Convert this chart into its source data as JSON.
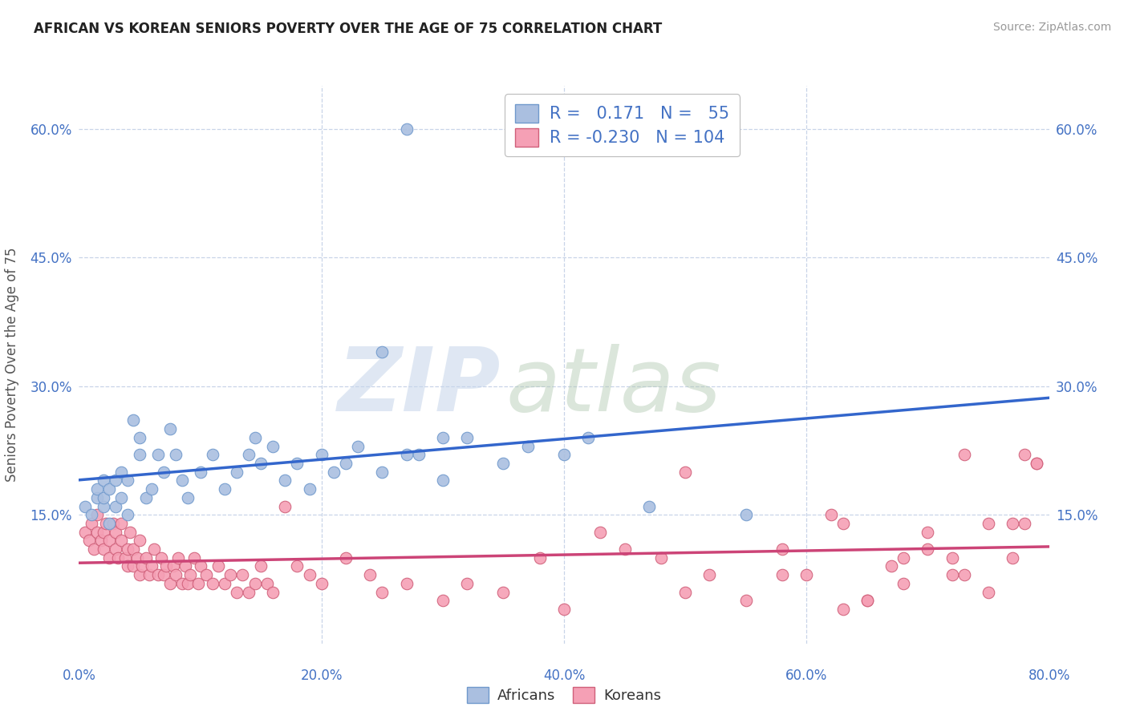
{
  "title": "AFRICAN VS KOREAN SENIORS POVERTY OVER THE AGE OF 75 CORRELATION CHART",
  "source": "Source: ZipAtlas.com",
  "ylabel": "Seniors Poverty Over the Age of 75",
  "xlim": [
    0.0,
    0.8
  ],
  "ylim": [
    0.0,
    0.65
  ],
  "xtick_positions": [
    0.0,
    0.2,
    0.4,
    0.6,
    0.8
  ],
  "xtick_labels": [
    "0.0%",
    "20.0%",
    "40.0%",
    "60.0%",
    "80.0%"
  ],
  "ytick_positions": [
    0.15,
    0.3,
    0.45,
    0.6
  ],
  "ytick_labels": [
    "15.0%",
    "30.0%",
    "45.0%",
    "60.0%"
  ],
  "tick_color": "#4472C4",
  "african_color": "#AABFE0",
  "african_edge_color": "#7099CC",
  "korean_color": "#F5A0B5",
  "korean_edge_color": "#D0607A",
  "african_line_color": "#3366CC",
  "korean_line_color": "#CC4477",
  "african_R": 0.171,
  "african_N": 55,
  "korean_R": -0.23,
  "korean_N": 104,
  "legend_label_african": "Africans",
  "legend_label_korean": "Koreans",
  "watermark_zip": "ZIP",
  "watermark_atlas": "atlas",
  "background_color": "#FFFFFF",
  "grid_color": "#C8D4E8",
  "african_x": [
    0.005,
    0.01,
    0.015,
    0.015,
    0.02,
    0.02,
    0.02,
    0.025,
    0.025,
    0.03,
    0.03,
    0.035,
    0.035,
    0.04,
    0.04,
    0.045,
    0.05,
    0.05,
    0.055,
    0.06,
    0.065,
    0.07,
    0.075,
    0.08,
    0.085,
    0.09,
    0.1,
    0.11,
    0.12,
    0.13,
    0.14,
    0.145,
    0.15,
    0.16,
    0.17,
    0.18,
    0.19,
    0.2,
    0.21,
    0.22,
    0.23,
    0.25,
    0.27,
    0.3,
    0.32,
    0.25,
    0.28,
    0.3,
    0.35,
    0.37,
    0.4,
    0.42,
    0.47,
    0.55,
    0.27
  ],
  "african_y": [
    0.16,
    0.15,
    0.17,
    0.18,
    0.16,
    0.17,
    0.19,
    0.14,
    0.18,
    0.16,
    0.19,
    0.17,
    0.2,
    0.15,
    0.19,
    0.26,
    0.22,
    0.24,
    0.17,
    0.18,
    0.22,
    0.2,
    0.25,
    0.22,
    0.19,
    0.17,
    0.2,
    0.22,
    0.18,
    0.2,
    0.22,
    0.24,
    0.21,
    0.23,
    0.19,
    0.21,
    0.18,
    0.22,
    0.2,
    0.21,
    0.23,
    0.2,
    0.22,
    0.19,
    0.24,
    0.34,
    0.22,
    0.24,
    0.21,
    0.23,
    0.22,
    0.24,
    0.16,
    0.15,
    0.6
  ],
  "korean_x": [
    0.005,
    0.008,
    0.01,
    0.012,
    0.015,
    0.015,
    0.018,
    0.02,
    0.02,
    0.022,
    0.025,
    0.025,
    0.028,
    0.03,
    0.03,
    0.032,
    0.035,
    0.035,
    0.038,
    0.04,
    0.04,
    0.042,
    0.045,
    0.045,
    0.048,
    0.05,
    0.05,
    0.052,
    0.055,
    0.058,
    0.06,
    0.062,
    0.065,
    0.068,
    0.07,
    0.072,
    0.075,
    0.078,
    0.08,
    0.082,
    0.085,
    0.088,
    0.09,
    0.092,
    0.095,
    0.098,
    0.1,
    0.105,
    0.11,
    0.115,
    0.12,
    0.125,
    0.13,
    0.135,
    0.14,
    0.145,
    0.15,
    0.155,
    0.16,
    0.17,
    0.18,
    0.19,
    0.2,
    0.22,
    0.24,
    0.25,
    0.27,
    0.3,
    0.32,
    0.35,
    0.38,
    0.4,
    0.43,
    0.45,
    0.48,
    0.5,
    0.52,
    0.55,
    0.58,
    0.6,
    0.63,
    0.65,
    0.68,
    0.7,
    0.72,
    0.73,
    0.75,
    0.77,
    0.78,
    0.79,
    0.5,
    0.58,
    0.63,
    0.68,
    0.72,
    0.75,
    0.78,
    0.65,
    0.7,
    0.73,
    0.77,
    0.79,
    0.62,
    0.67
  ],
  "korean_y": [
    0.13,
    0.12,
    0.14,
    0.11,
    0.13,
    0.15,
    0.12,
    0.11,
    0.13,
    0.14,
    0.1,
    0.12,
    0.14,
    0.11,
    0.13,
    0.1,
    0.12,
    0.14,
    0.1,
    0.09,
    0.11,
    0.13,
    0.09,
    0.11,
    0.1,
    0.08,
    0.12,
    0.09,
    0.1,
    0.08,
    0.09,
    0.11,
    0.08,
    0.1,
    0.08,
    0.09,
    0.07,
    0.09,
    0.08,
    0.1,
    0.07,
    0.09,
    0.07,
    0.08,
    0.1,
    0.07,
    0.09,
    0.08,
    0.07,
    0.09,
    0.07,
    0.08,
    0.06,
    0.08,
    0.06,
    0.07,
    0.09,
    0.07,
    0.06,
    0.16,
    0.09,
    0.08,
    0.07,
    0.1,
    0.08,
    0.06,
    0.07,
    0.05,
    0.07,
    0.06,
    0.1,
    0.04,
    0.13,
    0.11,
    0.1,
    0.06,
    0.08,
    0.05,
    0.11,
    0.08,
    0.14,
    0.05,
    0.1,
    0.13,
    0.08,
    0.22,
    0.06,
    0.1,
    0.14,
    0.21,
    0.2,
    0.08,
    0.04,
    0.07,
    0.1,
    0.14,
    0.22,
    0.05,
    0.11,
    0.08,
    0.14,
    0.21,
    0.15,
    0.09
  ]
}
